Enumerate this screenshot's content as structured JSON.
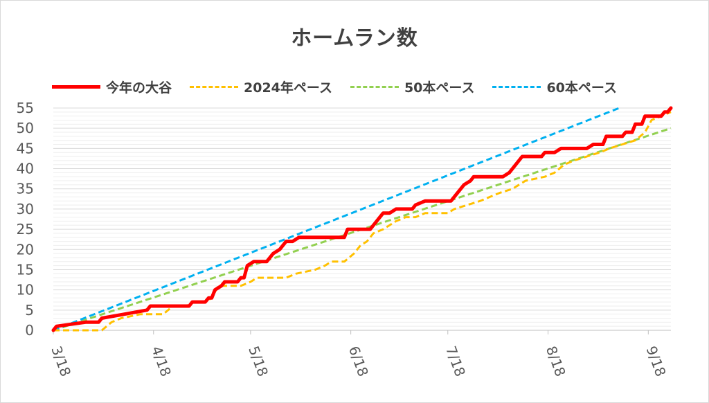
{
  "chart_data": {
    "type": "line",
    "title": "ホームラン数",
    "xlabel": "",
    "ylabel": "",
    "ylim": [
      0,
      55
    ],
    "ytick_step": 5,
    "y_ticks": [
      "0",
      "5",
      "10",
      "15",
      "20",
      "25",
      "30",
      "35",
      "40",
      "45",
      "50",
      "55"
    ],
    "x_range_days": [
      0,
      191
    ],
    "x_ticks": [
      {
        "label": "3/18",
        "day": 0
      },
      {
        "label": "4/18",
        "day": 31
      },
      {
        "label": "5/18",
        "day": 61
      },
      {
        "label": "6/18",
        "day": 92
      },
      {
        "label": "7/18",
        "day": 122
      },
      {
        "label": "8/18",
        "day": 153
      },
      {
        "label": "9/18",
        "day": 184
      }
    ],
    "minor_grid": true,
    "legend_position": "top",
    "series": [
      {
        "name": "今年の大谷",
        "color": "#ff0000",
        "style": "solid",
        "points": [
          [
            0,
            0
          ],
          [
            1,
            1
          ],
          [
            10,
            2
          ],
          [
            14,
            2
          ],
          [
            15,
            3
          ],
          [
            22,
            4
          ],
          [
            29,
            5
          ],
          [
            30,
            6
          ],
          [
            42,
            6
          ],
          [
            43,
            7
          ],
          [
            47,
            7
          ],
          [
            48,
            8
          ],
          [
            49,
            8
          ],
          [
            50,
            10
          ],
          [
            52,
            11
          ],
          [
            53,
            12
          ],
          [
            57,
            12
          ],
          [
            58,
            13
          ],
          [
            59,
            13
          ],
          [
            60,
            16
          ],
          [
            62,
            17
          ],
          [
            66,
            17
          ],
          [
            68,
            19
          ],
          [
            70,
            20
          ],
          [
            72,
            22
          ],
          [
            74,
            22
          ],
          [
            76,
            23
          ],
          [
            90,
            23
          ],
          [
            91,
            25
          ],
          [
            98,
            25
          ],
          [
            100,
            27
          ],
          [
            102,
            29
          ],
          [
            104,
            29
          ],
          [
            106,
            30
          ],
          [
            111,
            30
          ],
          [
            112,
            31
          ],
          [
            115,
            32
          ],
          [
            123,
            32
          ],
          [
            127,
            36
          ],
          [
            129,
            37
          ],
          [
            130,
            38
          ],
          [
            139,
            38
          ],
          [
            141,
            39
          ],
          [
            145,
            43
          ],
          [
            151,
            43
          ],
          [
            152,
            44
          ],
          [
            155,
            44
          ],
          [
            157,
            45
          ],
          [
            165,
            45
          ],
          [
            167,
            46
          ],
          [
            170,
            46
          ],
          [
            171,
            48
          ],
          [
            176,
            48
          ],
          [
            177,
            49
          ],
          [
            179,
            49
          ],
          [
            180,
            51
          ],
          [
            182,
            51
          ],
          [
            183,
            53
          ],
          [
            188,
            53
          ],
          [
            189,
            54
          ],
          [
            190,
            54
          ],
          [
            191,
            55
          ]
        ]
      },
      {
        "name": "2024年ペース",
        "color": "#ffc000",
        "style": "dashed",
        "points": [
          [
            0,
            0
          ],
          [
            15,
            0
          ],
          [
            18,
            2
          ],
          [
            21,
            3
          ],
          [
            27,
            4
          ],
          [
            34,
            4
          ],
          [
            37,
            6
          ],
          [
            41,
            6
          ],
          [
            43,
            7
          ],
          [
            47,
            7
          ],
          [
            49,
            8
          ],
          [
            51,
            11
          ],
          [
            58,
            11
          ],
          [
            61,
            12
          ],
          [
            63,
            13
          ],
          [
            72,
            13
          ],
          [
            75,
            14
          ],
          [
            81,
            15
          ],
          [
            84,
            16
          ],
          [
            86,
            17
          ],
          [
            90,
            17
          ],
          [
            93,
            19
          ],
          [
            95,
            21
          ],
          [
            97,
            22
          ],
          [
            99,
            24
          ],
          [
            102,
            25
          ],
          [
            106,
            27
          ],
          [
            109,
            28
          ],
          [
            112,
            28
          ],
          [
            115,
            29
          ],
          [
            122,
            29
          ],
          [
            124,
            30
          ],
          [
            128,
            31
          ],
          [
            132,
            32
          ],
          [
            135,
            33
          ],
          [
            138,
            34
          ],
          [
            142,
            35
          ],
          [
            146,
            37
          ],
          [
            152,
            38
          ],
          [
            155,
            39
          ],
          [
            158,
            41
          ],
          [
            161,
            42
          ],
          [
            165,
            43
          ],
          [
            169,
            44
          ],
          [
            172,
            45
          ],
          [
            176,
            46
          ],
          [
            180,
            47
          ],
          [
            183,
            49
          ],
          [
            185,
            52
          ],
          [
            188,
            53
          ],
          [
            191,
            54
          ]
        ]
      },
      {
        "name": "50本ペース",
        "color": "#92d050",
        "style": "dashed",
        "points": [
          [
            0,
            0
          ],
          [
            191,
            50
          ]
        ]
      },
      {
        "name": "60本ペース",
        "color": "#00b0f0",
        "style": "dashed",
        "points": [
          [
            0,
            0
          ],
          [
            175,
            55
          ]
        ]
      }
    ]
  }
}
